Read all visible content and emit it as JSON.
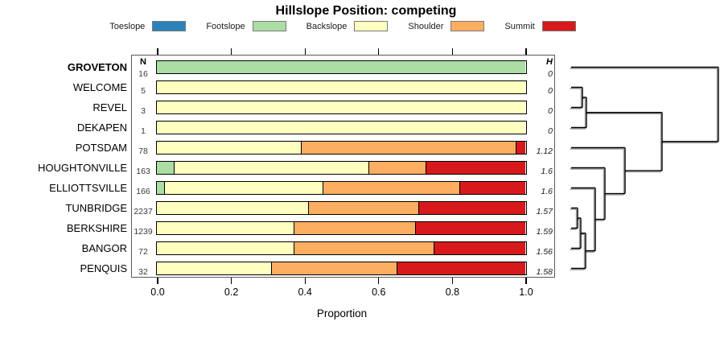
{
  "title": "Hillslope Position: competing",
  "legend": {
    "items": [
      {
        "label": "Toeslope",
        "color": "#2B83BA"
      },
      {
        "label": "Footslope",
        "color": "#ABDDA4"
      },
      {
        "label": "Backslope",
        "color": "#FFFFBF"
      },
      {
        "label": "Shoulder",
        "color": "#FDAE61"
      },
      {
        "label": "Summit",
        "color": "#D7191C"
      }
    ]
  },
  "table": {
    "n_header": "N",
    "h_header": "H"
  },
  "axis": {
    "label": "Proportion",
    "tick_labels": [
      "0.0",
      "0.2",
      "0.4",
      "0.6",
      "0.8",
      "1.0"
    ]
  },
  "chart_data": {
    "type": "bar",
    "orientation": "horizontal-stacked",
    "title": "Hillslope Position: competing",
    "xlabel": "Proportion",
    "xlim": [
      0,
      1
    ],
    "x_ticks": [
      0.0,
      0.2,
      0.4,
      0.6,
      0.8,
      1.0
    ],
    "legend_position": "top",
    "grid": false,
    "categories": [
      "GROVETON",
      "WELCOME",
      "REVEL",
      "DEKAPEN",
      "POTSDAM",
      "HOUGHTONVILLE",
      "ELLIOTTSVILLE",
      "TUNBRIDGE",
      "BERKSHIRE",
      "BANGOR",
      "PENQUIS"
    ],
    "bold_category": "GROVETON",
    "n_obs": [
      16,
      5,
      3,
      1,
      78,
      163,
      166,
      2237,
      1239,
      72,
      32
    ],
    "shannon_h": [
      "0",
      "0",
      "0",
      "0",
      "1.12",
      "1.6",
      "1.6",
      "1.57",
      "1.59",
      "1.56",
      "1.58"
    ],
    "series": [
      {
        "name": "Toeslope",
        "color": "#2B83BA",
        "values": [
          0,
          0,
          0,
          0,
          0,
          0,
          0,
          0,
          0,
          0,
          0
        ]
      },
      {
        "name": "Footslope",
        "color": "#ABDDA4",
        "values": [
          1,
          0,
          0,
          0,
          0,
          0.045,
          0.02,
          0,
          0,
          0,
          0
        ]
      },
      {
        "name": "Backslope",
        "color": "#FFFFBF",
        "values": [
          0,
          1,
          1,
          1,
          0.39,
          0.53,
          0.43,
          0.41,
          0.37,
          0.37,
          0.31
        ]
      },
      {
        "name": "Shoulder",
        "color": "#FDAE61",
        "values": [
          0,
          0,
          0,
          0,
          0.585,
          0.155,
          0.37,
          0.3,
          0.33,
          0.38,
          0.34
        ]
      },
      {
        "name": "Summit",
        "color": "#D7191C",
        "values": [
          0,
          0,
          0,
          0,
          0.025,
          0.27,
          0.18,
          0.29,
          0.3,
          0.25,
          0.35
        ]
      }
    ]
  },
  "dendrogram": {
    "leaf_start_x": 710,
    "root_x": 893,
    "merges": [
      {
        "a": "L1",
        "b": "L2",
        "x": 724
      },
      {
        "a": "m0",
        "b": "L3",
        "x": 729
      },
      {
        "a": "L7",
        "b": "L8",
        "x": 718
      },
      {
        "a": "m2",
        "b": "L9",
        "x": 722
      },
      {
        "a": "m3",
        "b": "L10",
        "x": 728
      },
      {
        "a": "L6",
        "b": "m4",
        "x": 740
      },
      {
        "a": "L5",
        "b": "m5",
        "x": 752
      },
      {
        "a": "L4",
        "b": "m6",
        "x": 777
      },
      {
        "a": "m1",
        "b": "m7",
        "x": 823
      },
      {
        "a": "L0",
        "b": "m8",
        "x": 893
      }
    ]
  }
}
